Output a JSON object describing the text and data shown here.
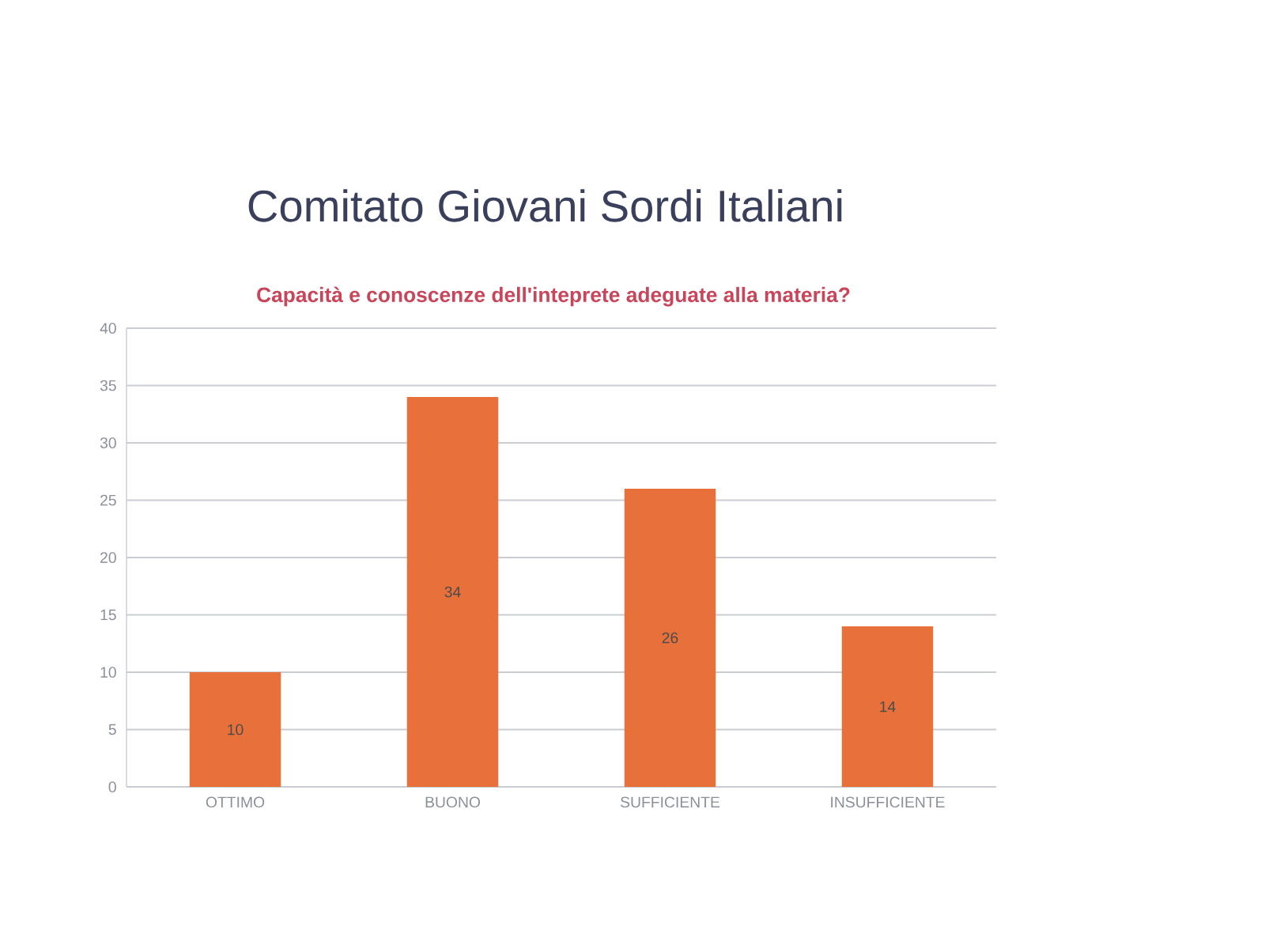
{
  "chart_data": {
    "type": "bar",
    "title": "Comitato Giovani Sordi Italiani",
    "subtitle": "Capacità e conoscenze dell'inteprete adeguate alla materia?",
    "categories": [
      "OTTIMO",
      "BUONO",
      "SUFFICIENTE",
      "INSUFFICIENTE"
    ],
    "values": [
      10,
      34,
      26,
      14
    ],
    "color": "#e8703a",
    "ylim": [
      0,
      40
    ],
    "yticks": [
      0,
      5,
      10,
      15,
      20,
      25,
      30,
      35,
      40
    ],
    "grid": "y",
    "data_labels": true
  }
}
